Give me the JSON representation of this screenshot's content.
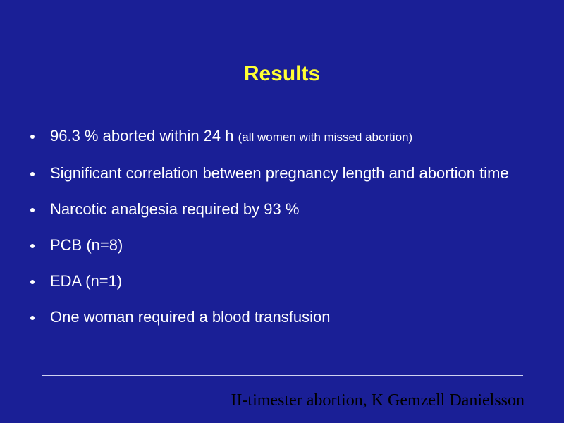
{
  "slide": {
    "title": "Results",
    "bullets": [
      {
        "text": "96.3 % aborted within 24 h",
        "note": "(all women with missed abortion)"
      },
      {
        "text": "Significant correlation between pregnancy length and abortion time"
      },
      {
        "text": "Narcotic analgesia required by 93 %"
      },
      {
        "text": "PCB (n=8)"
      },
      {
        "text": "EDA (n=1)"
      },
      {
        "text": "One woman required a blood transfusion"
      }
    ],
    "footer": "II-timester abortion, K Gemzell Danielsson"
  },
  "colors": {
    "background": "#1a1f96",
    "title": "#ffff33",
    "body_text": "#ffffff",
    "footer_text": "#000000"
  }
}
